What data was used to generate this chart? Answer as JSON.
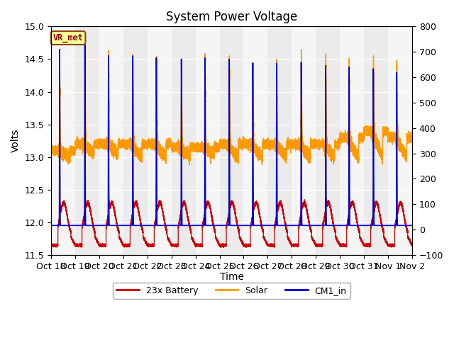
{
  "title": "System Power Voltage",
  "xlabel": "Time",
  "ylabel_left": "Volts",
  "ylim_left": [
    11.5,
    15.0
  ],
  "ylim_right": [
    -100,
    800
  ],
  "background_color": "#ffffff",
  "plot_bg_color": "#ebebeb",
  "grid_color": "#ffffff",
  "annotation_text": "VR_met",
  "annotation_bg": "#ffff99",
  "annotation_border": "#8B4513",
  "x_tick_labels": [
    "Oct 18",
    "Oct 19",
    "Oct 20",
    "Oct 21",
    "Oct 22",
    "Oct 23",
    "Oct 24",
    "Oct 25",
    "Oct 26",
    "Oct 27",
    "Oct 28",
    "Oct 29",
    "Oct 30",
    "Oct 31",
    "Nov 1",
    "Nov 2"
  ],
  "legend_labels": [
    "23x Battery",
    "Solar",
    "CM1_in"
  ],
  "legend_colors": [
    "#cc0000",
    "#ff9900",
    "#0000cc"
  ],
  "num_days": 15,
  "charge_times": [
    0.35,
    0.4,
    0.38,
    0.39,
    0.37,
    0.41,
    0.39,
    0.4,
    0.38,
    0.37,
    0.39,
    0.41,
    0.38,
    0.39,
    0.36
  ],
  "cm1_peaks": [
    14.65,
    14.72,
    14.55,
    14.55,
    14.52,
    14.5,
    14.52,
    14.5,
    14.44,
    14.44,
    14.45,
    14.4,
    14.38,
    14.35,
    14.3
  ],
  "solar_peaks": [
    14.1,
    14.65,
    14.62,
    14.55,
    14.5,
    14.35,
    14.52,
    14.5,
    14.44,
    14.44,
    14.55,
    14.5,
    14.45,
    14.5,
    14.45
  ],
  "bat_day_levels": [
    12.32,
    12.38,
    12.4,
    12.35,
    12.38,
    12.28,
    12.35,
    12.32,
    12.36,
    12.3,
    12.35,
    12.38,
    12.4,
    12.1,
    12.18
  ],
  "solar_night_start": [
    13.1,
    13.2,
    13.2,
    13.2,
    13.2,
    13.15,
    13.15,
    13.2,
    13.2,
    13.2,
    13.2,
    13.2,
    13.3,
    13.4,
    13.3
  ],
  "solar_night_end": [
    13.0,
    13.05,
    13.05,
    13.0,
    13.0,
    13.0,
    13.05,
    13.0,
    13.0,
    13.0,
    13.0,
    13.0,
    13.0,
    13.0,
    13.0
  ]
}
